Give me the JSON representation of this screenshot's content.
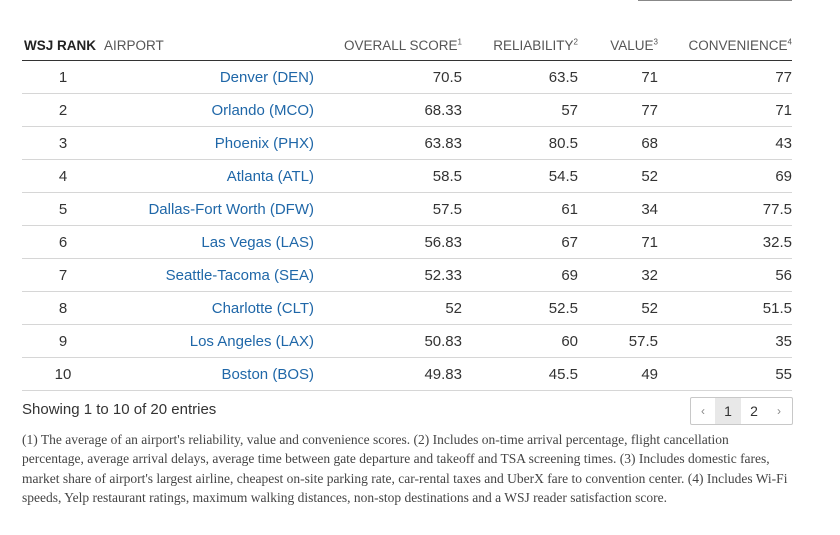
{
  "table": {
    "headers": {
      "rank": "WSJ RANK",
      "airport": "AIRPORT",
      "overall": "OVERALL SCORE",
      "overall_note": "1",
      "reliability": "RELIABILITY",
      "reliability_note": "2",
      "value": "VALUE",
      "value_note": "3",
      "convenience": "CONVENIENCE",
      "convenience_note": "4"
    },
    "rows": [
      {
        "rank": "1",
        "airport": "Denver (DEN)",
        "overall": "70.5",
        "reliability": "63.5",
        "value": "71",
        "convenience": "77"
      },
      {
        "rank": "2",
        "airport": "Orlando (MCO)",
        "overall": "68.33",
        "reliability": "57",
        "value": "77",
        "convenience": "71"
      },
      {
        "rank": "3",
        "airport": "Phoenix (PHX)",
        "overall": "63.83",
        "reliability": "80.5",
        "value": "68",
        "convenience": "43"
      },
      {
        "rank": "4",
        "airport": "Atlanta (ATL)",
        "overall": "58.5",
        "reliability": "54.5",
        "value": "52",
        "convenience": "69"
      },
      {
        "rank": "5",
        "airport": "Dallas-Fort Worth (DFW)",
        "overall": "57.5",
        "reliability": "61",
        "value": "34",
        "convenience": "77.5"
      },
      {
        "rank": "6",
        "airport": "Las Vegas (LAS)",
        "overall": "56.83",
        "reliability": "67",
        "value": "71",
        "convenience": "32.5"
      },
      {
        "rank": "7",
        "airport": "Seattle-Tacoma (SEA)",
        "overall": "52.33",
        "reliability": "69",
        "value": "32",
        "convenience": "56"
      },
      {
        "rank": "8",
        "airport": "Charlotte (CLT)",
        "overall": "52",
        "reliability": "52.5",
        "value": "52",
        "convenience": "51.5"
      },
      {
        "rank": "9",
        "airport": "Los Angeles (LAX)",
        "overall": "50.83",
        "reliability": "60",
        "value": "57.5",
        "convenience": "35"
      },
      {
        "rank": "10",
        "airport": "Boston (BOS)",
        "overall": "49.83",
        "reliability": "45.5",
        "value": "49",
        "convenience": "55"
      }
    ]
  },
  "info_text": "Showing 1 to 10 of 20 entries",
  "pagination": {
    "prev_icon": "chevron-left-icon",
    "prev_glyph": "‹",
    "pages": [
      "1",
      "2"
    ],
    "current_page": "1",
    "next_icon": "chevron-right-icon",
    "next_glyph": "›"
  },
  "footnotes": "(1) The average of an airport's reliability, value and convenience scores. (2) Includes on-time arrival percentage, flight cancellation percentage, average arrival delays, average time between gate departure and takeoff and TSA screening times. (3) Includes domestic fares, market share of airport's largest airline, cheapest on-site parking rate, car-rental taxes and UberX fare to convention center. (4) Includes Wi-Fi speeds, Yelp restaurant ratings, maximum walking distances, non-stop destinations and a WSJ reader satisfaction score.",
  "colors": {
    "airport_link": "#1f67a8",
    "header_rule": "#333333",
    "row_rule": "#d6d6d6",
    "active_page_bg": "#e8e8e8"
  }
}
